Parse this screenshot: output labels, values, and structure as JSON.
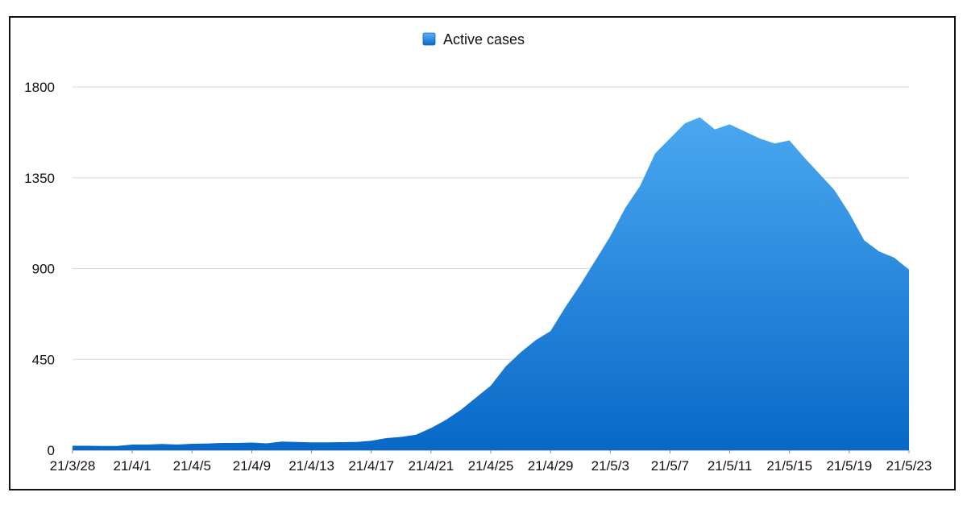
{
  "chart_data": {
    "type": "area",
    "title": "",
    "xlabel": "",
    "ylabel": "",
    "ylim": [
      0,
      1800
    ],
    "yticks": [
      0,
      450,
      900,
      1350,
      1800
    ],
    "xtick_labels": [
      "21/3/28",
      "21/4/1",
      "21/4/5",
      "21/4/9",
      "21/4/13",
      "21/4/17",
      "21/4/21",
      "21/4/25",
      "21/4/29",
      "21/5/3",
      "21/5/7",
      "21/5/11",
      "21/5/15",
      "21/5/19",
      "21/5/23"
    ],
    "grid": true,
    "legend": "top-center",
    "series": [
      {
        "name": "Active cases",
        "color_top": "#4aa8f0",
        "color_bottom": "#0868c8",
        "x": [
          "21/3/28",
          "21/3/29",
          "21/3/30",
          "21/3/31",
          "21/4/1",
          "21/4/2",
          "21/4/3",
          "21/4/4",
          "21/4/5",
          "21/4/6",
          "21/4/7",
          "21/4/8",
          "21/4/9",
          "21/4/10",
          "21/4/11",
          "21/4/12",
          "21/4/13",
          "21/4/14",
          "21/4/15",
          "21/4/16",
          "21/4/17",
          "21/4/18",
          "21/4/19",
          "21/4/20",
          "21/4/21",
          "21/4/22",
          "21/4/23",
          "21/4/24",
          "21/4/25",
          "21/4/26",
          "21/4/27",
          "21/4/28",
          "21/4/29",
          "21/4/30",
          "21/5/1",
          "21/5/2",
          "21/5/3",
          "21/5/4",
          "21/5/5",
          "21/5/6",
          "21/5/7",
          "21/5/8",
          "21/5/9",
          "21/5/10",
          "21/5/11",
          "21/5/12",
          "21/5/13",
          "21/5/14",
          "21/5/15",
          "21/5/16",
          "21/5/17",
          "21/5/18",
          "21/5/19",
          "21/5/20",
          "21/5/21",
          "21/5/22",
          "21/5/23"
        ],
        "values": [
          22,
          22,
          21,
          21,
          28,
          28,
          31,
          28,
          32,
          33,
          36,
          36,
          38,
          34,
          43,
          41,
          39,
          39,
          40,
          41,
          47,
          60,
          66,
          77,
          110,
          150,
          200,
          260,
          320,
          415,
          485,
          545,
          590,
          710,
          820,
          940,
          1060,
          1200,
          1310,
          1470,
          1545,
          1620,
          1650,
          1590,
          1615,
          1580,
          1545,
          1520,
          1535,
          1450,
          1370,
          1290,
          1175,
          1040,
          985,
          955,
          895
        ]
      }
    ]
  },
  "legend": {
    "label": "Active cases",
    "swatch_color": "#1a7ad8"
  }
}
